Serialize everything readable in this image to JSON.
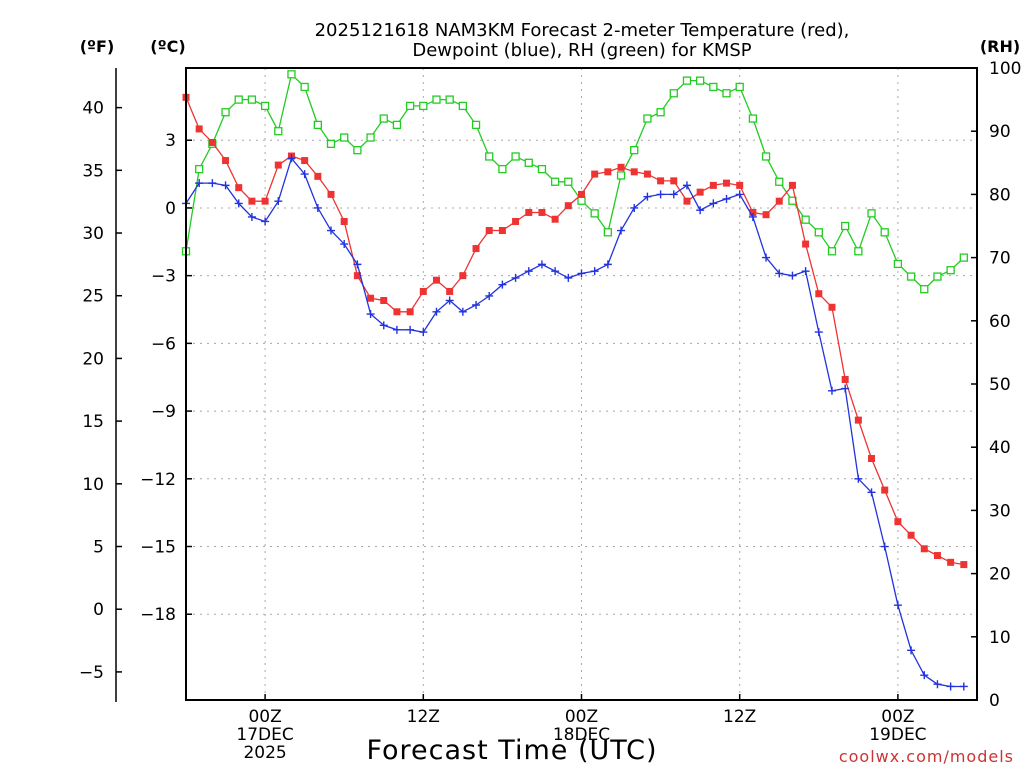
{
  "colors": {
    "temperature": "#ee3333",
    "dewpoint": "#2233dd",
    "rh": "#22cc22",
    "credit": "#cc3333"
  },
  "chart_data": {
    "type": "line",
    "title": [
      "2025121618 NAM3KM Forecast 2-meter Temperature (red),",
      "Dewpoint (blue), RH (green) for KMSP"
    ],
    "xlabel": "Forecast Time (UTC)",
    "credit": "coolwx.com/models",
    "units": {
      "fahrenheit": "(ºF)",
      "celsius": "(ºC)",
      "rh": "(RH)"
    },
    "x_unit": "forecast hour from 2025121618 (one point per hour)",
    "xlim": [
      0,
      60
    ],
    "x_ticks": [
      {
        "hour": 6,
        "lines": [
          "00Z",
          "17DEC",
          "2025"
        ]
      },
      {
        "hour": 18,
        "lines": [
          "12Z"
        ]
      },
      {
        "hour": 30,
        "lines": [
          "00Z",
          "18DEC"
        ]
      },
      {
        "hour": 42,
        "lines": [
          "12Z"
        ]
      },
      {
        "hour": 54,
        "lines": [
          "00Z",
          "19DEC"
        ]
      }
    ],
    "y_celsius": {
      "lim": [
        -21.8,
        6.2
      ],
      "ticks": [
        "3",
        "0",
        "−3",
        "−6",
        "−9",
        "−12",
        "−15",
        "−18"
      ],
      "tick_values": [
        3,
        0,
        -3,
        -6,
        -9,
        -12,
        -15,
        -18
      ]
    },
    "y_fahrenheit": {
      "ticks": [
        "40",
        "35",
        "30",
        "25",
        "20",
        "15",
        "10",
        "5",
        "0",
        "−5"
      ],
      "tick_values": [
        40,
        35,
        30,
        25,
        20,
        15,
        10,
        5,
        0,
        -5
      ]
    },
    "y_rh": {
      "lim": [
        0,
        100
      ],
      "ticks": [
        "100",
        "90",
        "80",
        "70",
        "60",
        "50",
        "40",
        "30",
        "20",
        "10",
        "0"
      ],
      "tick_values": [
        100,
        90,
        80,
        70,
        60,
        50,
        40,
        30,
        20,
        10,
        0
      ]
    },
    "series": [
      {
        "name": "Temperature",
        "unit": "C",
        "values": [
          4.9,
          3.5,
          2.9,
          2.1,
          0.9,
          0.3,
          0.3,
          1.9,
          2.3,
          2.1,
          1.4,
          0.6,
          -0.6,
          -3.0,
          -4.0,
          -4.1,
          -4.6,
          -4.6,
          -3.7,
          -3.2,
          -3.7,
          -3.0,
          -1.8,
          -1.0,
          -1.0,
          -0.6,
          -0.2,
          -0.2,
          -0.5,
          0.1,
          0.6,
          1.5,
          1.6,
          1.8,
          1.6,
          1.5,
          1.2,
          1.2,
          0.3,
          0.7,
          1.0,
          1.1,
          1.0,
          -0.2,
          -0.3,
          0.3,
          1.0,
          -1.6,
          -3.8,
          -4.4,
          -7.6,
          -9.4,
          -11.1,
          -12.5,
          -13.9,
          -14.5,
          -15.1,
          -15.4,
          -15.7,
          -15.8
        ]
      },
      {
        "name": "Dewpoint",
        "unit": "C",
        "values": [
          0.2,
          1.1,
          1.1,
          1.0,
          0.2,
          -0.4,
          -0.6,
          0.3,
          2.2,
          1.5,
          0.0,
          -1.0,
          -1.6,
          -2.5,
          -4.7,
          -5.2,
          -5.4,
          -5.4,
          -5.5,
          -4.6,
          -4.1,
          -4.6,
          -4.3,
          -3.9,
          -3.4,
          -3.1,
          -2.8,
          -2.5,
          -2.8,
          -3.1,
          -2.9,
          -2.8,
          -2.5,
          -1.0,
          0.0,
          0.5,
          0.6,
          0.6,
          1.0,
          -0.1,
          0.2,
          0.4,
          0.6,
          -0.4,
          -2.2,
          -2.9,
          -3.0,
          -2.8,
          -5.5,
          -8.1,
          -8.0,
          -12.0,
          -12.6,
          -15.0,
          -17.6,
          -19.6,
          -20.7,
          -21.1,
          -21.2,
          -21.2
        ]
      },
      {
        "name": "RH",
        "unit": "%",
        "values": [
          71,
          84,
          88,
          93,
          95,
          95,
          94,
          90,
          99,
          97,
          91,
          88,
          89,
          87,
          89,
          92,
          91,
          94,
          94,
          95,
          95,
          94,
          91,
          86,
          84,
          86,
          85,
          84,
          82,
          82,
          79,
          77,
          74,
          83,
          87,
          92,
          93,
          96,
          98,
          98,
          97,
          96,
          97,
          92,
          86,
          82,
          79,
          76,
          74,
          71,
          75,
          71,
          77,
          74,
          69,
          67,
          65,
          67,
          68,
          70
        ]
      }
    ]
  }
}
